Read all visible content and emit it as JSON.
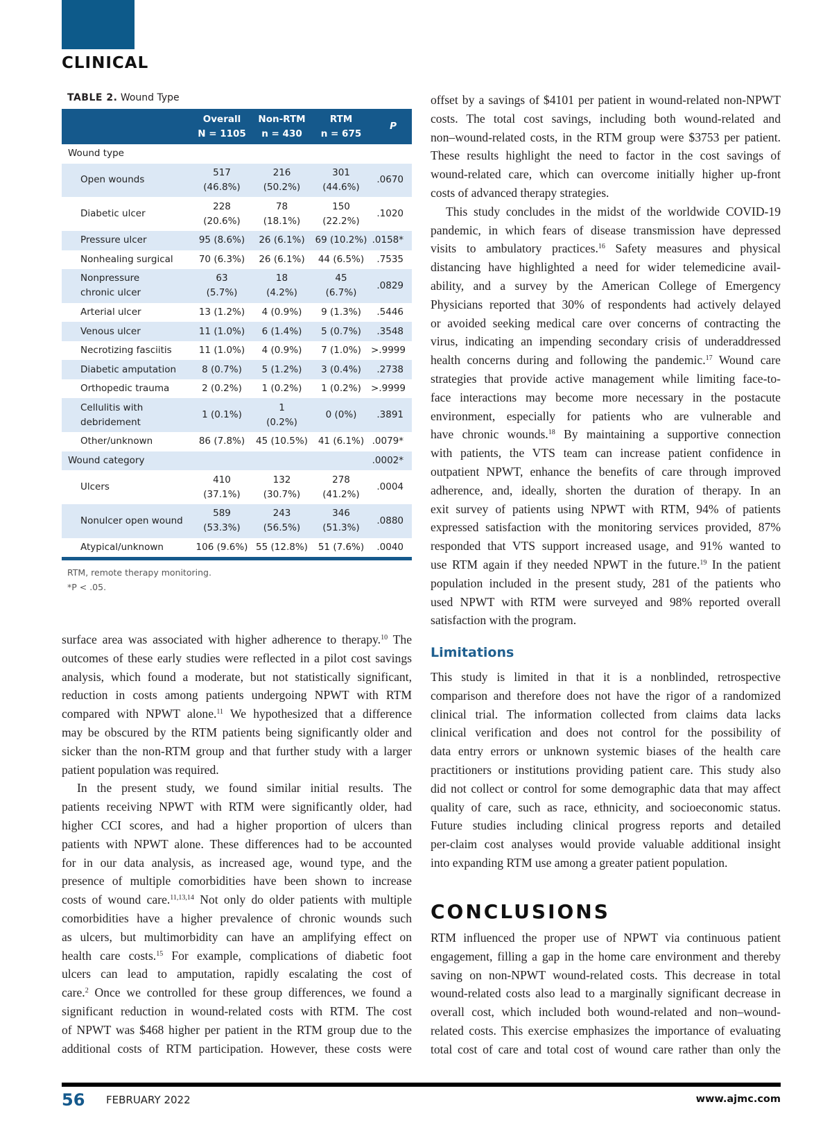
{
  "header": {
    "section": "CLINICAL",
    "brand_color": "#0d5a8a"
  },
  "table": {
    "label": "TABLE 2.",
    "title": "Wound Type",
    "columns": [
      {
        "line1": "",
        "line2": ""
      },
      {
        "line1": "Overall",
        "line2": "N = 1105"
      },
      {
        "line1": "Non-RTM",
        "line2": "n = 430"
      },
      {
        "line1": "RTM",
        "line2": "n = 675"
      },
      {
        "line1": "",
        "line2": "P"
      }
    ],
    "rows": [
      {
        "type": "section",
        "label": "Wound type",
        "overall": "",
        "non_rtm": "",
        "rtm": "",
        "p": ""
      },
      {
        "type": "item",
        "label": "Open wounds",
        "overall": "517 (46.8%)",
        "non_rtm": "216 (50.2%)",
        "rtm": "301 (44.6%)",
        "p": ".0670"
      },
      {
        "type": "item",
        "label": "Diabetic ulcer",
        "overall": "228 (20.6%)",
        "non_rtm": "78 (18.1%)",
        "rtm": "150 (22.2%)",
        "p": ".1020"
      },
      {
        "type": "item",
        "label": "Pressure ulcer",
        "overall": "95 (8.6%)",
        "non_rtm": "26 (6.1%)",
        "rtm": "69 (10.2%)",
        "p": ".0158*"
      },
      {
        "type": "item",
        "label": "Nonhealing surgical",
        "overall": "70 (6.3%)",
        "non_rtm": "26 (6.1%)",
        "rtm": "44 (6.5%)",
        "p": ".7535"
      },
      {
        "type": "item",
        "label": "Nonpressure chronic ulcer",
        "overall": "63 (5.7%)",
        "non_rtm": "18 (4.2%)",
        "rtm": "45 (6.7%)",
        "p": ".0829"
      },
      {
        "type": "item",
        "label": "Arterial ulcer",
        "overall": "13 (1.2%)",
        "non_rtm": "4 (0.9%)",
        "rtm": "9 (1.3%)",
        "p": ".5446"
      },
      {
        "type": "item",
        "label": "Venous ulcer",
        "overall": "11 (1.0%)",
        "non_rtm": "6 (1.4%)",
        "rtm": "5 (0.7%)",
        "p": ".3548"
      },
      {
        "type": "item",
        "label": "Necrotizing fasciitis",
        "overall": "11 (1.0%)",
        "non_rtm": "4 (0.9%)",
        "rtm": "7 (1.0%)",
        "p": ">.9999"
      },
      {
        "type": "item",
        "label": "Diabetic amputation",
        "overall": "8 (0.7%)",
        "non_rtm": "5 (1.2%)",
        "rtm": "3 (0.4%)",
        "p": ".2738"
      },
      {
        "type": "item",
        "label": "Orthopedic trauma",
        "overall": "2 (0.2%)",
        "non_rtm": "1 (0.2%)",
        "rtm": "1 (0.2%)",
        "p": ">.9999"
      },
      {
        "type": "item",
        "label": "Cellulitis with debridement",
        "overall": "1 (0.1%)",
        "non_rtm": "1 (0.2%)",
        "rtm": "0 (0%)",
        "p": ".3891"
      },
      {
        "type": "item",
        "label": "Other/unknown",
        "overall": "86 (7.8%)",
        "non_rtm": "45 (10.5%)",
        "rtm": "41 (6.1%)",
        "p": ".0079*"
      },
      {
        "type": "section",
        "label": "Wound category",
        "overall": "",
        "non_rtm": "",
        "rtm": "",
        "p": ".0002*"
      },
      {
        "type": "item",
        "label": "Ulcers",
        "overall": "410 (37.1%)",
        "non_rtm": "132 (30.7%)",
        "rtm": "278 (41.2%)",
        "p": ".0004"
      },
      {
        "type": "item",
        "label": "Nonulcer open wound",
        "overall": "589 (53.3%)",
        "non_rtm": "243 (56.5%)",
        "rtm": "346 (51.3%)",
        "p": ".0880"
      },
      {
        "type": "item",
        "label": "Atypical/unknown",
        "overall": "106 (9.6%)",
        "non_rtm": "55 (12.8%)",
        "rtm": "51 (7.6%)",
        "p": ".0040"
      }
    ],
    "footnote_abbrev": "RTM, remote therapy monitoring.",
    "footnote_sig": "*P < .05.",
    "header_color": "#15598c",
    "stripe_color": "#dce8f5"
  },
  "left_column": [
    {
      "lines": [
        [
          "surface area was associated with higher adherence to therapy.",
          {
            "sup": "10"
          },
          " The"
        ],
        [
          "outcomes of these early studies were reflected in a pilot cost savings"
        ],
        [
          "analysis, which found a moderate, but not statistically significant,"
        ],
        [
          "reduction in costs among patients undergoing NPWT with RTM"
        ],
        [
          "compared with NPWT alone.",
          {
            "sup": "11"
          },
          " We hypothesized that a difference"
        ],
        [
          "may be obscured by the RTM patients being significantly older and"
        ],
        [
          "sicker than the non-RTM group and that further study with a larger"
        ],
        [
          "patient population was required."
        ]
      ]
    },
    {
      "lines": [
        [
          "In the present study, we found similar initial results. The"
        ],
        [
          "patients receiving NPWT with RTM were significantly older, had"
        ],
        [
          "higher CCI scores, and had a higher proportion of ulcers than"
        ],
        [
          "patients with NPWT alone. These differences had to be accounted"
        ],
        [
          "for in our data analysis, as increased age, wound type, and the"
        ],
        [
          "presence of multiple comorbidities have been shown to increase"
        ],
        [
          "costs of wound care.",
          {
            "sup": "11,13,14"
          },
          " Not only do older patients with multiple"
        ],
        [
          "comorbidities have a higher prevalence of chronic wounds such"
        ],
        [
          "as ulcers, but multimorbidity can have an amplifying effect on"
        ],
        [
          "health care costs.",
          {
            "sup": "15"
          },
          " For example, complications of diabetic foot"
        ],
        [
          "ulcers can lead to amputation, rapidly escalating the cost of"
        ],
        [
          "care.",
          {
            "sup": "2"
          },
          " Once we controlled for these group differences, we found a"
        ],
        [
          "significant reduction in wound-related costs with RTM. The cost"
        ],
        [
          "of NPWT was $468 higher per patient in the RTM group due to the"
        ],
        [
          "additional costs of RTM participation. However, these costs were"
        ]
      ]
    }
  ],
  "right_column": [
    {
      "lines": [
        [
          "offset by a savings of $4101 per patient in wound-related non-NPWT"
        ],
        [
          "costs. The total cost savings, including both wound-related and"
        ],
        [
          "non–wound-related costs, in the RTM group were $3753 per patient."
        ],
        [
          "These results highlight the need to factor in the cost savings of"
        ],
        [
          "wound-related care, which can overcome initially higher up-front"
        ],
        [
          "costs of advanced therapy strategies."
        ]
      ]
    },
    {
      "lines": [
        [
          "This study concludes in the midst of the worldwide COVID-19"
        ],
        [
          "pandemic, in which fears of disease transmission have depressed"
        ],
        [
          "visits to ambulatory practices.",
          {
            "sup": "16"
          },
          " Safety measures and physical"
        ],
        [
          "distancing have highlighted a need for wider telemedicine avail-"
        ],
        [
          "ability, and a survey by the American College of Emergency"
        ],
        [
          "Physicians reported that 30% of respondents had actively delayed"
        ],
        [
          "or avoided seeking medical care over concerns of contracting the"
        ],
        [
          "virus, indicating an impending secondary crisis of underaddressed"
        ],
        [
          "health concerns during and following the pandemic.",
          {
            "sup": "17"
          },
          " Wound care"
        ],
        [
          "strategies that provide active management while limiting face-to-"
        ],
        [
          "face interactions may become more necessary in the postacute"
        ],
        [
          "environment, especially for patients who are vulnerable and"
        ],
        [
          "have chronic wounds.",
          {
            "sup": "18"
          },
          " By maintaining a supportive connection"
        ],
        [
          "with patients, the VTS team can increase patient confidence in"
        ],
        [
          "outpatient NPWT, enhance the benefits of care through improved"
        ],
        [
          "adherence, and, ideally, shorten the duration of therapy. In an"
        ],
        [
          "exit survey of patients using NPWT with RTM, 94% of patients"
        ],
        [
          "expressed satisfaction with the monitoring services provided, 87%"
        ],
        [
          "responded that VTS support increased usage, and 91% wanted to"
        ],
        [
          "use RTM again if they needed NPWT in the future.",
          {
            "sup": "19"
          },
          " In the patient"
        ],
        [
          "population included in the present study, 281 of the patients who"
        ],
        [
          "used NPWT with RTM were surveyed and 98% reported overall"
        ],
        [
          "satisfaction with the program."
        ]
      ]
    }
  ],
  "limitations": {
    "heading": "Limitations",
    "lines": [
      [
        "This study is limited in that it is a nonblinded, retrospective"
      ],
      [
        "comparison and therefore does not have the rigor of a randomized"
      ],
      [
        "clinical trial. The information collected from claims data lacks"
      ],
      [
        "clinical verification and does not control for the possibility of"
      ],
      [
        "data entry errors or unknown systemic biases of the health care"
      ],
      [
        "practitioners or institutions providing patient care. This study also"
      ],
      [
        "did not collect or control for some demographic data that may affect"
      ],
      [
        "quality of care, such as race, ethnicity, and socioeconomic status."
      ],
      [
        "Future studies including clinical progress reports and detailed"
      ],
      [
        "per-claim cost analyses would provide valuable additional insight"
      ],
      [
        "into expanding RTM use among a greater patient population."
      ]
    ]
  },
  "conclusions": {
    "heading": "CONCLUSIONS",
    "lines": [
      [
        "RTM influenced the proper use of NPWT via continuous patient"
      ],
      [
        "engagement, filling a gap in the home care environment and thereby"
      ],
      [
        "saving on non-NPWT wound-related costs. This decrease in total"
      ],
      [
        "wound-related costs also lead to a marginally significant decrease in"
      ],
      [
        "overall cost, which included both wound-related and non–wound-"
      ],
      [
        "related costs. This exercise emphasizes the importance of evaluating"
      ],
      [
        "total cost of care and total cost of wound care rather than only the"
      ]
    ]
  },
  "footer": {
    "page_number": "56",
    "issue_date": "FEBRUARY 2022",
    "website": "www.ajmc.com"
  }
}
